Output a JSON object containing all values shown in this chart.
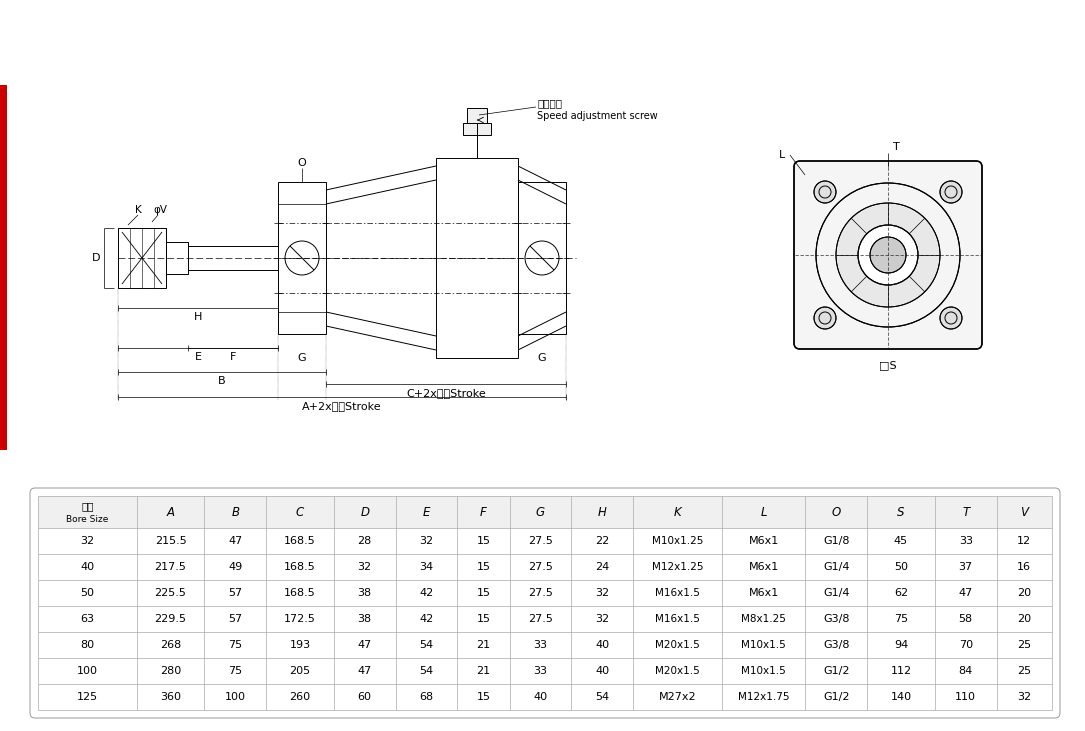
{
  "table_headers": [
    "缸径\nBore Size",
    "A",
    "B",
    "C",
    "D",
    "E",
    "F",
    "G",
    "H",
    "K",
    "L",
    "O",
    "S",
    "T",
    "V"
  ],
  "table_rows": [
    [
      "32",
      "215.5",
      "47",
      "168.5",
      "28",
      "32",
      "15",
      "27.5",
      "22",
      "M10x1.25",
      "M6x1",
      "G1/8",
      "45",
      "33",
      "12"
    ],
    [
      "40",
      "217.5",
      "49",
      "168.5",
      "32",
      "34",
      "15",
      "27.5",
      "24",
      "M12x1.25",
      "M6x1",
      "G1/4",
      "50",
      "37",
      "16"
    ],
    [
      "50",
      "225.5",
      "57",
      "168.5",
      "38",
      "42",
      "15",
      "27.5",
      "32",
      "M16x1.5",
      "M6x1",
      "G1/4",
      "62",
      "47",
      "20"
    ],
    [
      "63",
      "229.5",
      "57",
      "172.5",
      "38",
      "42",
      "15",
      "27.5",
      "32",
      "M16x1.5",
      "M8x1.25",
      "G3/8",
      "75",
      "58",
      "20"
    ],
    [
      "80",
      "268",
      "75",
      "193",
      "47",
      "54",
      "21",
      "33",
      "40",
      "M20x1.5",
      "M10x1.5",
      "G3/8",
      "94",
      "70",
      "25"
    ],
    [
      "100",
      "280",
      "75",
      "205",
      "47",
      "54",
      "21",
      "33",
      "40",
      "M20x1.5",
      "M10x1.5",
      "G1/2",
      "112",
      "84",
      "25"
    ],
    [
      "125",
      "360",
      "100",
      "260",
      "60",
      "68",
      "15",
      "40",
      "54",
      "M27x2",
      "M12x1.75",
      "G1/2",
      "140",
      "110",
      "32"
    ]
  ],
  "bg_color": "#ffffff",
  "red_bar_color": "#cc0000"
}
